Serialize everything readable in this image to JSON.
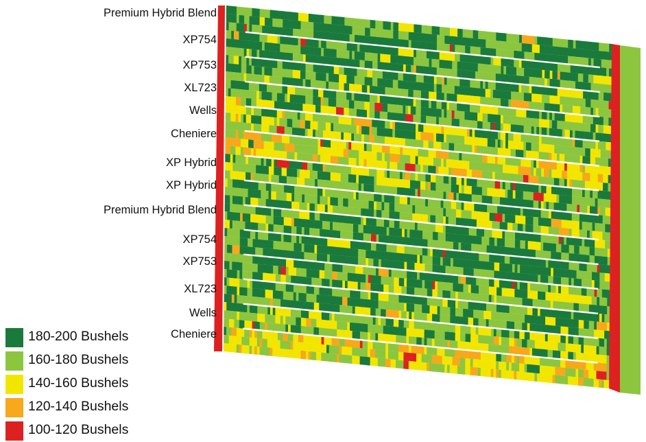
{
  "strips": [
    {
      "label": "Premium Hybrid Blend",
      "mix": [
        0.62,
        0.3,
        0.06,
        0.01,
        0.01
      ]
    },
    {
      "label": "XP754",
      "mix": [
        0.6,
        0.32,
        0.06,
        0.01,
        0.01
      ]
    },
    {
      "label": "XP753",
      "mix": [
        0.38,
        0.42,
        0.17,
        0.02,
        0.01
      ]
    },
    {
      "label": "XL723",
      "mix": [
        0.4,
        0.42,
        0.15,
        0.02,
        0.01
      ]
    },
    {
      "label": "Wells",
      "mix": [
        0.2,
        0.4,
        0.33,
        0.06,
        0.01
      ]
    },
    {
      "label": "Cheniere",
      "mix": [
        0.05,
        0.3,
        0.45,
        0.18,
        0.02
      ]
    },
    {
      "label": "XP Hybrid",
      "mix": [
        0.5,
        0.35,
        0.12,
        0.02,
        0.01
      ]
    },
    {
      "label": "XP Hybrid",
      "mix": [
        0.35,
        0.45,
        0.17,
        0.02,
        0.01
      ]
    },
    {
      "label": "Premium Hybrid Blend",
      "mix": [
        0.58,
        0.33,
        0.07,
        0.01,
        0.01
      ]
    },
    {
      "label": "XP754",
      "mix": [
        0.6,
        0.32,
        0.06,
        0.01,
        0.01
      ]
    },
    {
      "label": "XP753",
      "mix": [
        0.4,
        0.42,
        0.15,
        0.02,
        0.01
      ]
    },
    {
      "label": "XL723",
      "mix": [
        0.5,
        0.35,
        0.12,
        0.02,
        0.01
      ]
    },
    {
      "label": "Wells",
      "mix": [
        0.2,
        0.45,
        0.3,
        0.04,
        0.01
      ]
    },
    {
      "label": "Cheniere",
      "mix": [
        0.06,
        0.3,
        0.45,
        0.17,
        0.02
      ]
    }
  ],
  "legend": [
    {
      "label": "180-200 Bushels",
      "color": "#1a7a3c"
    },
    {
      "label": "160-180 Bushels",
      "color": "#8cc63f"
    },
    {
      "label": "140-160 Bushels",
      "color": "#f2e600"
    },
    {
      "label": "120-140 Bushels",
      "color": "#f7a81b"
    },
    {
      "label": "100-120 Bushels",
      "color": "#dd2121"
    }
  ]
}
